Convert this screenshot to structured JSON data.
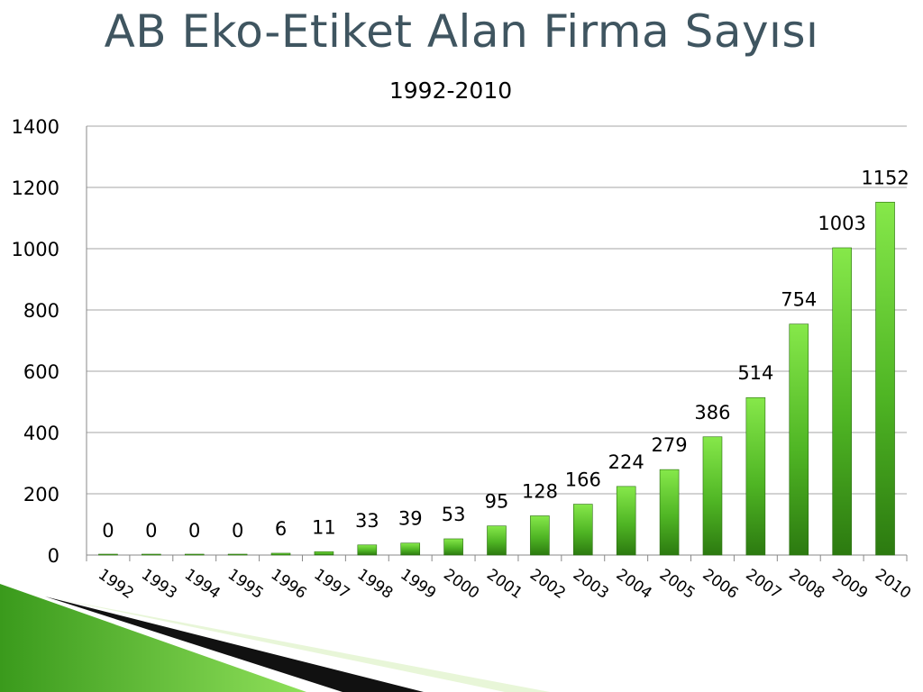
{
  "slide": {
    "title": "AB Eko-Etiket Alan Firma Sayısı"
  },
  "chart_data": {
    "type": "bar",
    "title": "1992-2010",
    "xlabel": "",
    "ylabel": "",
    "ylim": [
      0,
      1400
    ],
    "yticks": [
      0,
      200,
      400,
      600,
      800,
      1000,
      1200,
      1400
    ],
    "grid": true,
    "legend": "none",
    "categories": [
      "1992",
      "1993",
      "1994",
      "1995",
      "1996",
      "1997",
      "1998",
      "1999",
      "2000",
      "2001",
      "2002",
      "2003",
      "2004",
      "2005",
      "2006",
      "2007",
      "2008",
      "2009",
      "2010"
    ],
    "values": [
      0,
      0,
      0,
      0,
      6,
      11,
      33,
      39,
      53,
      95,
      128,
      166,
      224,
      279,
      386,
      514,
      754,
      1003,
      1152
    ],
    "colors": {
      "bar_light": "#7fe040",
      "bar_dark": "#2e7d12",
      "grid": "#a6a6a6"
    }
  }
}
